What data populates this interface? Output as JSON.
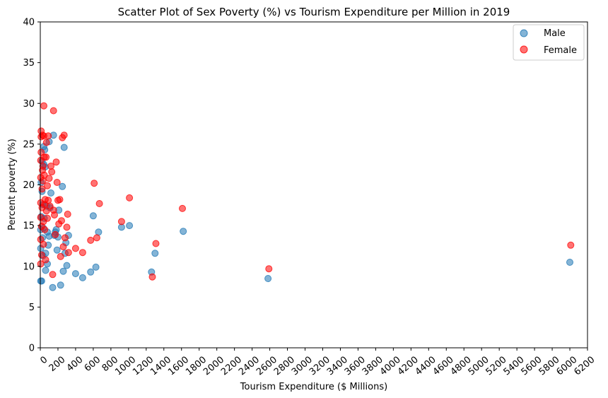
{
  "chart_data": {
    "type": "scatter",
    "title": "Scatter Plot of Sex Poverty (%) vs Tourism Expenditure per Million in 2019",
    "xlabel": "Tourism Expenditure ($ Millions)",
    "ylabel": "Percent poverty (%)",
    "xlim": [
      0,
      6200
    ],
    "ylim": [
      0,
      40
    ],
    "x_ticks": [
      0,
      200,
      400,
      600,
      800,
      1000,
      1200,
      1400,
      1600,
      1800,
      2000,
      2200,
      2400,
      2600,
      2800,
      3000,
      3200,
      3400,
      3600,
      3800,
      4000,
      4200,
      4400,
      4600,
      4800,
      5000,
      5200,
      5400,
      5600,
      5800,
      6000,
      6200
    ],
    "y_ticks": [
      0,
      5,
      10,
      15,
      20,
      25,
      30,
      35,
      40
    ],
    "grid": false,
    "legend_position": "top-right",
    "series": [
      {
        "name": "Male",
        "color": "#1f77b4",
        "points": [
          [
            5,
            8.2
          ],
          [
            5,
            12.2
          ],
          [
            5,
            14.5
          ],
          [
            10,
            16.1
          ],
          [
            10,
            20.3
          ],
          [
            15,
            8.2
          ],
          [
            20,
            22.9
          ],
          [
            20,
            19.2
          ],
          [
            25,
            13.5
          ],
          [
            30,
            11.3
          ],
          [
            30,
            17.6
          ],
          [
            35,
            14.7
          ],
          [
            40,
            24.7
          ],
          [
            40,
            22.5
          ],
          [
            45,
            15.9
          ],
          [
            50,
            24.3
          ],
          [
            55,
            22.2
          ],
          [
            60,
            11.6
          ],
          [
            60,
            9.5
          ],
          [
            70,
            17.4
          ],
          [
            80,
            10.3
          ],
          [
            80,
            14.2
          ],
          [
            90,
            12.6
          ],
          [
            100,
            25.3
          ],
          [
            100,
            13.7
          ],
          [
            110,
            17.2
          ],
          [
            120,
            19.0
          ],
          [
            140,
            7.4
          ],
          [
            150,
            26.1
          ],
          [
            160,
            13.8
          ],
          [
            170,
            14.2
          ],
          [
            180,
            14.5
          ],
          [
            190,
            12.0
          ],
          [
            200,
            13.6
          ],
          [
            210,
            16.9
          ],
          [
            230,
            7.7
          ],
          [
            250,
            19.8
          ],
          [
            260,
            9.4
          ],
          [
            270,
            24.6
          ],
          [
            280,
            11.6
          ],
          [
            290,
            12.9
          ],
          [
            300,
            10.1
          ],
          [
            320,
            13.8
          ],
          [
            400,
            9.1
          ],
          [
            480,
            8.6
          ],
          [
            570,
            9.3
          ],
          [
            600,
            16.2
          ],
          [
            630,
            9.9
          ],
          [
            660,
            14.2
          ],
          [
            920,
            14.8
          ],
          [
            1010,
            15.0
          ],
          [
            1260,
            9.3
          ],
          [
            1300,
            11.6
          ],
          [
            1620,
            14.3
          ],
          [
            2580,
            8.5
          ],
          [
            6000,
            10.5
          ]
        ]
      },
      {
        "name": "Female",
        "color": "#ff0000",
        "points": [
          [
            5,
            10.3
          ],
          [
            5,
            13.3
          ],
          [
            5,
            16.0
          ],
          [
            5,
            17.8
          ],
          [
            5,
            20.9
          ],
          [
            5,
            23.0
          ],
          [
            10,
            26.6
          ],
          [
            10,
            25.9
          ],
          [
            10,
            24.0
          ],
          [
            15,
            14.9
          ],
          [
            15,
            11.4
          ],
          [
            20,
            19.5
          ],
          [
            20,
            17.2
          ],
          [
            25,
            26.1
          ],
          [
            25,
            21.8
          ],
          [
            30,
            22.3
          ],
          [
            30,
            20.5
          ],
          [
            35,
            15.5
          ],
          [
            35,
            12.7
          ],
          [
            40,
            29.7
          ],
          [
            40,
            26.0
          ],
          [
            45,
            23.4
          ],
          [
            45,
            21.2
          ],
          [
            50,
            17.6
          ],
          [
            50,
            14.5
          ],
          [
            55,
            18.2
          ],
          [
            60,
            10.8
          ],
          [
            65,
            23.4
          ],
          [
            70,
            25.2
          ],
          [
            70,
            16.8
          ],
          [
            80,
            19.9
          ],
          [
            80,
            15.9
          ],
          [
            90,
            26.0
          ],
          [
            90,
            18.1
          ],
          [
            100,
            20.8
          ],
          [
            110,
            17.4
          ],
          [
            120,
            22.3
          ],
          [
            130,
            21.6
          ],
          [
            140,
            9.0
          ],
          [
            150,
            29.1
          ],
          [
            150,
            16.9
          ],
          [
            160,
            16.3
          ],
          [
            170,
            13.9
          ],
          [
            180,
            22.8
          ],
          [
            190,
            20.3
          ],
          [
            200,
            18.1
          ],
          [
            210,
            15.2
          ],
          [
            220,
            18.2
          ],
          [
            230,
            11.2
          ],
          [
            240,
            15.6
          ],
          [
            250,
            25.8
          ],
          [
            260,
            12.4
          ],
          [
            270,
            26.1
          ],
          [
            280,
            13.5
          ],
          [
            300,
            14.8
          ],
          [
            310,
            16.4
          ],
          [
            320,
            11.7
          ],
          [
            400,
            12.2
          ],
          [
            480,
            11.7
          ],
          [
            570,
            13.2
          ],
          [
            610,
            20.2
          ],
          [
            640,
            13.5
          ],
          [
            670,
            17.7
          ],
          [
            920,
            15.5
          ],
          [
            1010,
            18.4
          ],
          [
            1270,
            8.7
          ],
          [
            1310,
            12.8
          ],
          [
            1610,
            17.1
          ],
          [
            2590,
            9.7
          ],
          [
            6010,
            12.6
          ]
        ]
      }
    ]
  }
}
